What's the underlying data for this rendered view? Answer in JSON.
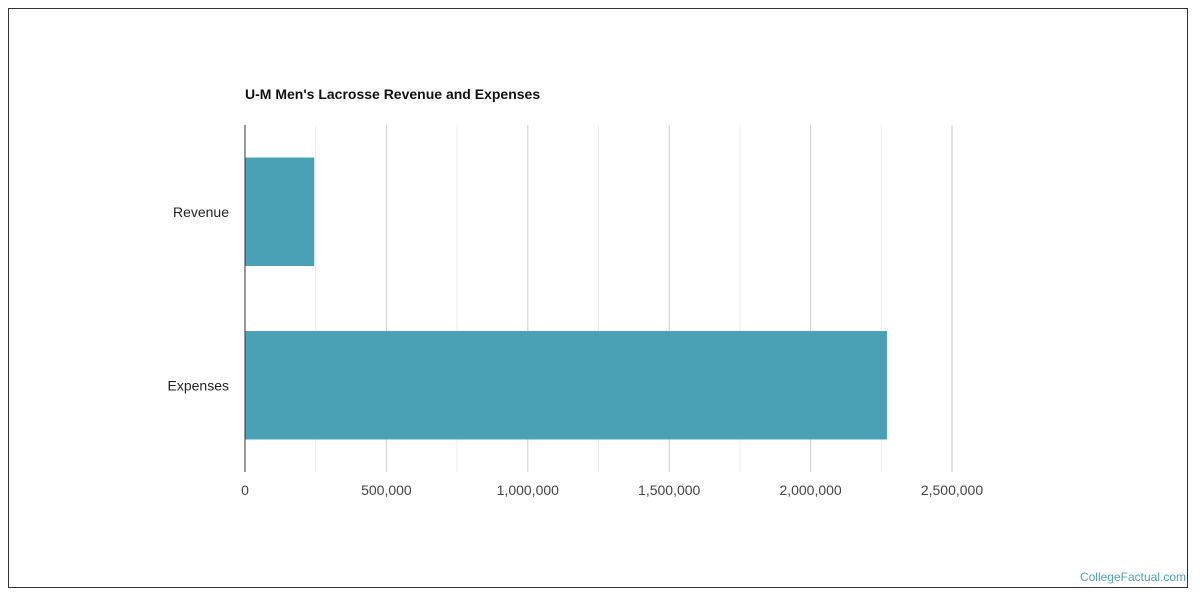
{
  "chart_data": {
    "type": "bar",
    "orientation": "horizontal",
    "title": "U-M Men's Lacrosse Revenue and Expenses",
    "categories": [
      "Revenue",
      "Expenses"
    ],
    "values": [
      245000,
      2270000
    ],
    "xlim": [
      0,
      2500000
    ],
    "ticks": [
      0,
      500000,
      1000000,
      1500000,
      2000000,
      2500000
    ],
    "tick_labels": [
      "0",
      "500,000",
      "1,000,000",
      "1,500,000",
      "2,000,000",
      "2,500,000"
    ],
    "grid": true,
    "bar_color": "#4aa0b5",
    "xlabel": "",
    "ylabel": ""
  },
  "footer": {
    "credit": "CollegeFactual.com"
  }
}
